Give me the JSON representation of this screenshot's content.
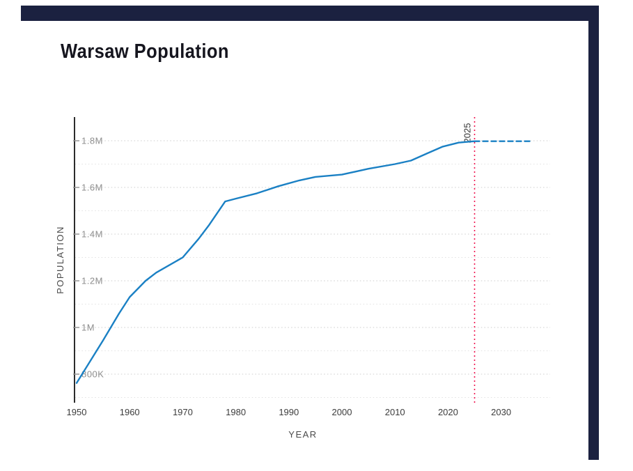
{
  "theme": {
    "accent_panel": "#1b2140",
    "card_background": "#ffffff",
    "title_color": "#15151e",
    "line_color": "#1a80c4",
    "projection_color": "#1a80c4",
    "vline_color": "#f0134e",
    "vline_label_color": "#333333",
    "grid_major": "#cccccc",
    "grid_minor": "#e1e1e1",
    "axis_color": "#2b2b2b",
    "y_tick_color": "#8f8f8f",
    "x_tick_color": "#3c3c3c",
    "axis_label_color": "#4a4a4a"
  },
  "chart_data": {
    "type": "line",
    "title": "Warsaw Population",
    "xlabel": "YEAR",
    "ylabel": "POPULATION",
    "x_ticks": [
      1950,
      1960,
      1970,
      1980,
      1990,
      2000,
      2010,
      2020,
      2030
    ],
    "y_ticks": [
      {
        "label": "800K",
        "value": 800000
      },
      {
        "label": "1M",
        "value": 1000000
      },
      {
        "label": "1.2M",
        "value": 1200000
      },
      {
        "label": "1.4M",
        "value": 1400000
      },
      {
        "label": "1.6M",
        "value": 1600000
      },
      {
        "label": "1.8M",
        "value": 1800000
      }
    ],
    "grid_step_minor": 100000,
    "xlim": [
      1950,
      2035.5
    ],
    "ylim": [
      680000,
      1895000
    ],
    "grid": "dotted-horizontal",
    "legend": "none",
    "series": [
      {
        "name": "historical",
        "style": "solid",
        "points": [
          [
            1950,
            762000
          ],
          [
            1955,
            945000
          ],
          [
            1958,
            1060000
          ],
          [
            1960,
            1130000
          ],
          [
            1963,
            1200000
          ],
          [
            1965,
            1235000
          ],
          [
            1970,
            1300000
          ],
          [
            1973,
            1380000
          ],
          [
            1975,
            1440000
          ],
          [
            1978,
            1540000
          ],
          [
            1980,
            1552000
          ],
          [
            1984,
            1575000
          ],
          [
            1988,
            1605000
          ],
          [
            1992,
            1630000
          ],
          [
            1995,
            1645000
          ],
          [
            2000,
            1655000
          ],
          [
            2005,
            1680000
          ],
          [
            2010,
            1700000
          ],
          [
            2013,
            1715000
          ],
          [
            2016,
            1745000
          ],
          [
            2019,
            1775000
          ],
          [
            2022,
            1792000
          ],
          [
            2025,
            1798000
          ]
        ]
      },
      {
        "name": "projection",
        "style": "dashed",
        "points": [
          [
            2025,
            1798000
          ],
          [
            2035.5,
            1798000
          ]
        ]
      }
    ],
    "annotation_vline": {
      "x": 2025,
      "label": "2025"
    }
  }
}
